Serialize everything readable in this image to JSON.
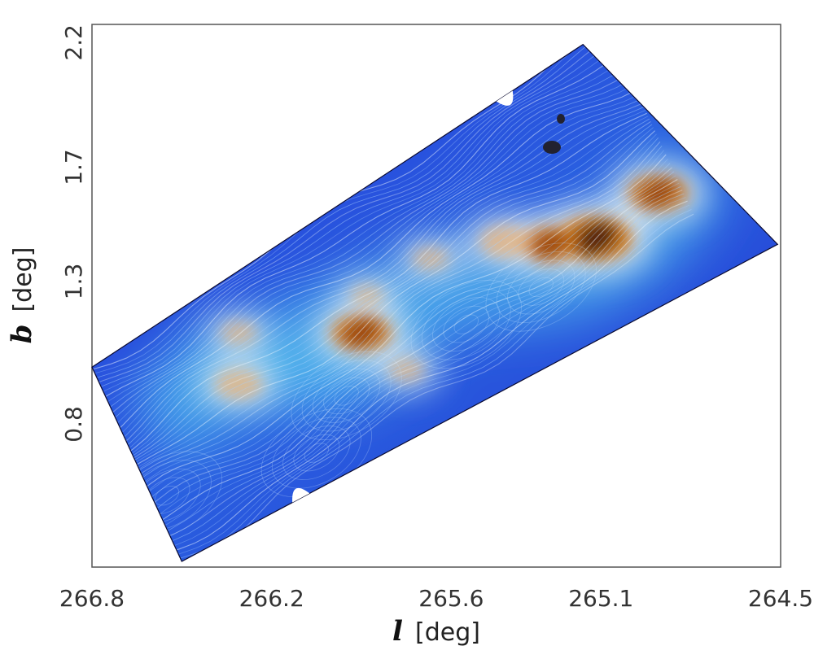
{
  "chart_data": {
    "type": "heatmap",
    "title": "",
    "xlabel": {
      "symbol": "l",
      "unit": "[deg]"
    },
    "ylabel": {
      "symbol": "b",
      "unit": "[deg]"
    },
    "x_ticks": [
      {
        "label": "266.8",
        "value": 266.8
      },
      {
        "label": "266.2",
        "value": 266.2
      },
      {
        "label": "265.6",
        "value": 265.6
      },
      {
        "label": "265.1",
        "value": 265.1
      },
      {
        "label": "264.5",
        "value": 264.5
      }
    ],
    "y_ticks": [
      {
        "label": "0.8",
        "value": 0.8
      },
      {
        "label": "1.3",
        "value": 1.3
      },
      {
        "label": "1.7",
        "value": 1.7
      },
      {
        "label": "2.2",
        "value": 2.2
      }
    ],
    "xlim": [
      266.8,
      264.5
    ],
    "ylim": [
      0.3,
      2.2
    ],
    "x_reversed": true,
    "colormap": [
      "#1f2fd6",
      "#2f6fe0",
      "#5cc8ee",
      "#d8e6ef",
      "#e8b070",
      "#d07a20",
      "#8a3a10",
      "#3a1a0a"
    ],
    "overlay": "magnetic-field-streamlines",
    "grid": false,
    "legend": "none",
    "footprint_corners": [
      {
        "l": 266.8,
        "b": 1.0
      },
      {
        "l": 265.16,
        "b": 2.13
      },
      {
        "l": 264.51,
        "b": 1.43
      },
      {
        "l": 266.5,
        "b": 0.32
      }
    ],
    "clumps": [
      {
        "l": 265.12,
        "b": 1.45,
        "intensity": 1.0
      },
      {
        "l": 264.91,
        "b": 1.61,
        "intensity": 0.75
      },
      {
        "l": 265.27,
        "b": 1.43,
        "intensity": 0.7
      },
      {
        "l": 265.42,
        "b": 1.44,
        "intensity": 0.55
      },
      {
        "l": 265.9,
        "b": 1.12,
        "intensity": 0.75
      },
      {
        "l": 266.31,
        "b": 0.94,
        "intensity": 0.5
      },
      {
        "l": 266.31,
        "b": 1.12,
        "intensity": 0.3
      },
      {
        "l": 265.75,
        "b": 0.99,
        "intensity": 0.3
      },
      {
        "l": 265.88,
        "b": 1.25,
        "intensity": 0.25
      },
      {
        "l": 265.67,
        "b": 1.38,
        "intensity": 0.3
      }
    ]
  }
}
